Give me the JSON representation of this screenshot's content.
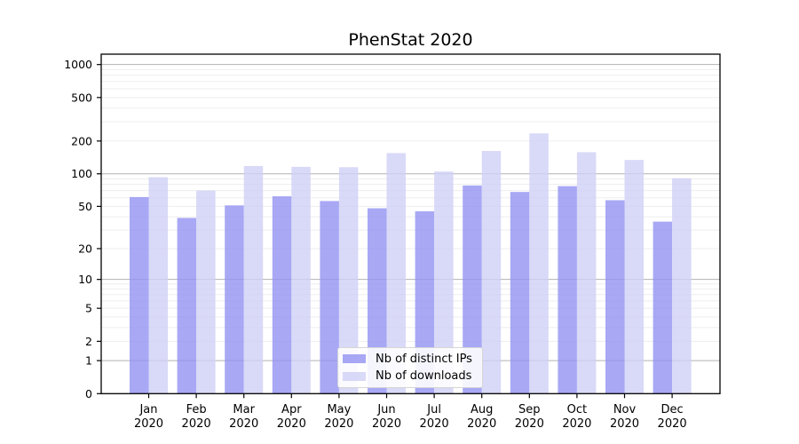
{
  "chart_data": {
    "type": "bar",
    "title": "PhenStat 2020",
    "categories": [
      "Jan 2020",
      "Feb 2020",
      "Mar 2020",
      "Apr 2020",
      "May 2020",
      "Jun 2020",
      "Jul 2020",
      "Aug 2020",
      "Sep 2020",
      "Oct 2020",
      "Nov 2020",
      "Dec 2020"
    ],
    "series": [
      {
        "name": "Nb of distinct IPs",
        "color": "#9292f2",
        "opacity": 0.8,
        "values": [
          61,
          39,
          51,
          62,
          56,
          48,
          45,
          78,
          68,
          77,
          57,
          36
        ]
      },
      {
        "name": "Nb of downloads",
        "color": "#cfcff6",
        "opacity": 0.8,
        "values": [
          93,
          70,
          118,
          116,
          115,
          155,
          105,
          162,
          235,
          158,
          134,
          91
        ]
      }
    ],
    "y_axis": {
      "scale": "log1p",
      "tick_labels": [
        0,
        1,
        2,
        5,
        10,
        20,
        50,
        100,
        200,
        500,
        1000
      ],
      "major_gridlines": [
        1,
        10,
        100,
        1000
      ],
      "ylim": [
        0,
        1240
      ],
      "major_grid_color": "#b2b2b2",
      "minor_grid_color": "#ededed"
    },
    "x_axis": {
      "tick_label_lines": 2
    },
    "legend": {
      "position": "lower center inside",
      "background": "#ffffff",
      "border_color": "#d5d5d5"
    },
    "frame_color": "#000000",
    "text_color": "#000000",
    "background": "#ffffff"
  }
}
